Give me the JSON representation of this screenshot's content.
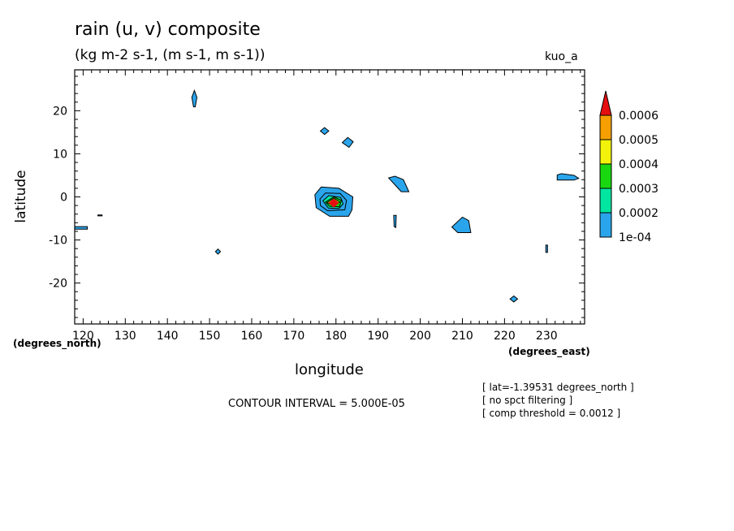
{
  "header": {
    "title": "rain (u, v) composite",
    "units": "(kg m-2 s-1, (m s-1, m s-1))",
    "model": "kuo_a"
  },
  "axes": {
    "xlabel": "longitude",
    "ylabel": "latitude",
    "x_units": "(degrees_east)",
    "y_units": "(degrees_north)"
  },
  "footer": {
    "contour_interval": "CONTOUR INTERVAL = 5.000E-05",
    "notes": [
      "[ lat=-1.39531 degrees_north ]",
      "[ no spct filtering ]",
      "[ comp threshold = 0.0012 ]"
    ]
  },
  "chart_data": {
    "type": "heatmap",
    "title": "rain (u, v) composite",
    "xlabel": "longitude",
    "ylabel": "latitude",
    "xlim": [
      118,
      239
    ],
    "ylim": [
      -29.5,
      29.5
    ],
    "xticks": [
      120,
      130,
      140,
      150,
      160,
      170,
      180,
      190,
      200,
      210,
      220,
      230
    ],
    "yticks": [
      -20,
      -10,
      0,
      10,
      20
    ],
    "colorbar": {
      "levels": [
        0.0001,
        0.00015,
        0.0002,
        0.00025,
        0.0003,
        0.00035,
        0.0004,
        0.00045,
        0.0005,
        0.00055,
        0.0006
      ],
      "labels": [
        "1e-04",
        "0.0002",
        "0.0003",
        "0.0004",
        "0.0005",
        "0.0006"
      ],
      "colors": [
        "#2aa5ec",
        "#00e6a0",
        "#19d80f",
        "#f2f20a",
        "#f5a000",
        "#e60f0f"
      ]
    },
    "features": [
      {
        "lon": 146.4,
        "lat": 22.5,
        "value_level": 0.0001
      },
      {
        "lon": 177.3,
        "lat": 15.3,
        "value_level": 0.0001
      },
      {
        "lon": 182.8,
        "lat": 12.6,
        "value_level": 0.0001
      },
      {
        "lon": 195.0,
        "lat": 2.8,
        "value_level": 0.0001
      },
      {
        "lon": 235.0,
        "lat": 4.5,
        "value_level": 0.0001
      },
      {
        "lon": 179.5,
        "lat": -1.0,
        "value_level": 0.0006
      },
      {
        "lon": 194.0,
        "lat": -5.3,
        "value_level": 0.0001
      },
      {
        "lon": 209.7,
        "lat": -6.5,
        "value_level": 0.0001
      },
      {
        "lon": 230.0,
        "lat": -12.0,
        "value_level": 0.0001
      },
      {
        "lon": 152.0,
        "lat": -12.7,
        "value_level": 0.0001
      },
      {
        "lon": 222.2,
        "lat": -23.7,
        "value_level": 0.0001
      },
      {
        "lon": 119.5,
        "lat": -7.2,
        "value_level": 0.0001
      },
      {
        "lon": 124.0,
        "lat": -4.3,
        "value_level": 0.0001
      }
    ]
  }
}
